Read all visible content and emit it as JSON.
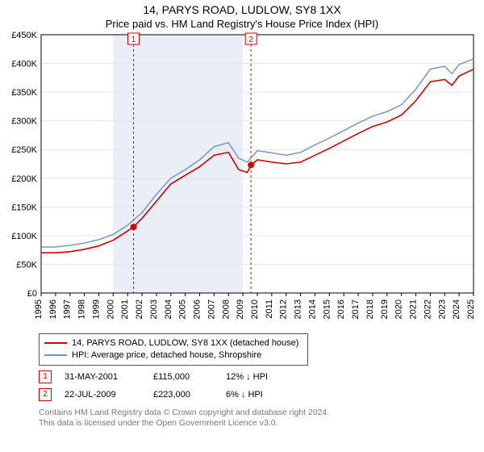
{
  "title": {
    "main": "14, PARYS ROAD, LUDLOW, SY8 1XX",
    "sub": "Price paid vs. HM Land Registry's House Price Index (HPI)"
  },
  "chart": {
    "type": "line",
    "background_color": "#ffffff",
    "grid_color": "#e6e6e6",
    "x": {
      "min": 1995,
      "max": 2025,
      "ticks": [
        1995,
        1996,
        1997,
        1998,
        1999,
        2000,
        2001,
        2002,
        2003,
        2004,
        2005,
        2006,
        2007,
        2008,
        2009,
        2010,
        2011,
        2012,
        2013,
        2014,
        2015,
        2016,
        2017,
        2018,
        2019,
        2020,
        2021,
        2022,
        2023,
        2024,
        2025
      ]
    },
    "y": {
      "min": 0,
      "max": 450000,
      "step": 50000,
      "ticks": [
        0,
        50000,
        100000,
        150000,
        200000,
        250000,
        300000,
        350000,
        400000,
        450000
      ],
      "labels": [
        "£0",
        "£50K",
        "£100K",
        "£150K",
        "£200K",
        "£250K",
        "£300K",
        "£350K",
        "£400K",
        "£450K"
      ]
    },
    "shade_band": {
      "from": 2000,
      "to": 2009,
      "fill": "#e9eef7"
    },
    "event_lines": [
      {
        "x": 2001.41,
        "label": "1",
        "color": "#d00000",
        "dash": "3,3"
      },
      {
        "x": 2009.56,
        "label": "2",
        "color": "#d00000",
        "dash": "3,3"
      }
    ],
    "series": [
      {
        "name": "property",
        "label": "14, PARYS ROAD, LUDLOW, SY8 1XX (detached house)",
        "color": "#d00000",
        "width": 1.6,
        "points": [
          [
            1995,
            70000
          ],
          [
            1996,
            70000
          ],
          [
            1997,
            72000
          ],
          [
            1998,
            76000
          ],
          [
            1999,
            82000
          ],
          [
            2000,
            92000
          ],
          [
            2001,
            108000
          ],
          [
            2001.41,
            115000
          ],
          [
            2002,
            130000
          ],
          [
            2003,
            160000
          ],
          [
            2004,
            190000
          ],
          [
            2005,
            205000
          ],
          [
            2006,
            220000
          ],
          [
            2007,
            240000
          ],
          [
            2008,
            245000
          ],
          [
            2008.7,
            215000
          ],
          [
            2009.3,
            210000
          ],
          [
            2009.56,
            223000
          ],
          [
            2010,
            232000
          ],
          [
            2011,
            228000
          ],
          [
            2012,
            225000
          ],
          [
            2013,
            228000
          ],
          [
            2014,
            240000
          ],
          [
            2015,
            252000
          ],
          [
            2016,
            265000
          ],
          [
            2017,
            278000
          ],
          [
            2018,
            290000
          ],
          [
            2019,
            298000
          ],
          [
            2020,
            310000
          ],
          [
            2021,
            335000
          ],
          [
            2022,
            368000
          ],
          [
            2023,
            372000
          ],
          [
            2023.5,
            362000
          ],
          [
            2024,
            378000
          ],
          [
            2025,
            390000
          ]
        ],
        "sale_markers": [
          {
            "x": 2001.41,
            "y": 115000
          },
          {
            "x": 2009.56,
            "y": 223000
          }
        ]
      },
      {
        "name": "hpi",
        "label": "HPI: Average price, detached house, Shropshire",
        "color": "#6e91c6",
        "width": 1.4,
        "points": [
          [
            1995,
            80000
          ],
          [
            1996,
            80000
          ],
          [
            1997,
            83000
          ],
          [
            1998,
            87000
          ],
          [
            1999,
            93000
          ],
          [
            2000,
            102000
          ],
          [
            2001,
            118000
          ],
          [
            2002,
            140000
          ],
          [
            2003,
            172000
          ],
          [
            2004,
            200000
          ],
          [
            2005,
            215000
          ],
          [
            2006,
            232000
          ],
          [
            2007,
            255000
          ],
          [
            2008,
            262000
          ],
          [
            2008.7,
            235000
          ],
          [
            2009.3,
            228000
          ],
          [
            2010,
            248000
          ],
          [
            2011,
            244000
          ],
          [
            2012,
            240000
          ],
          [
            2013,
            245000
          ],
          [
            2014,
            258000
          ],
          [
            2015,
            270000
          ],
          [
            2016,
            283000
          ],
          [
            2017,
            296000
          ],
          [
            2018,
            308000
          ],
          [
            2019,
            316000
          ],
          [
            2020,
            328000
          ],
          [
            2021,
            355000
          ],
          [
            2022,
            390000
          ],
          [
            2023,
            395000
          ],
          [
            2023.5,
            382000
          ],
          [
            2024,
            398000
          ],
          [
            2025,
            408000
          ]
        ]
      }
    ]
  },
  "legend": {
    "items": [
      {
        "color": "#d00000",
        "label": "14, PARYS ROAD, LUDLOW, SY8 1XX (detached house)"
      },
      {
        "color": "#6e91c6",
        "label": "HPI: Average price, detached house, Shropshire"
      }
    ]
  },
  "sales": [
    {
      "badge": "1",
      "date": "31-MAY-2001",
      "price": "£115,000",
      "delta": "12% ↓ HPI"
    },
    {
      "badge": "2",
      "date": "22-JUL-2009",
      "price": "£223,000",
      "delta": "6% ↓ HPI"
    }
  ],
  "footnote": {
    "l1": "Contains HM Land Registry data © Crown copyright and database right 2024.",
    "l2": "This data is licensed under the Open Government Licence v3.0."
  }
}
